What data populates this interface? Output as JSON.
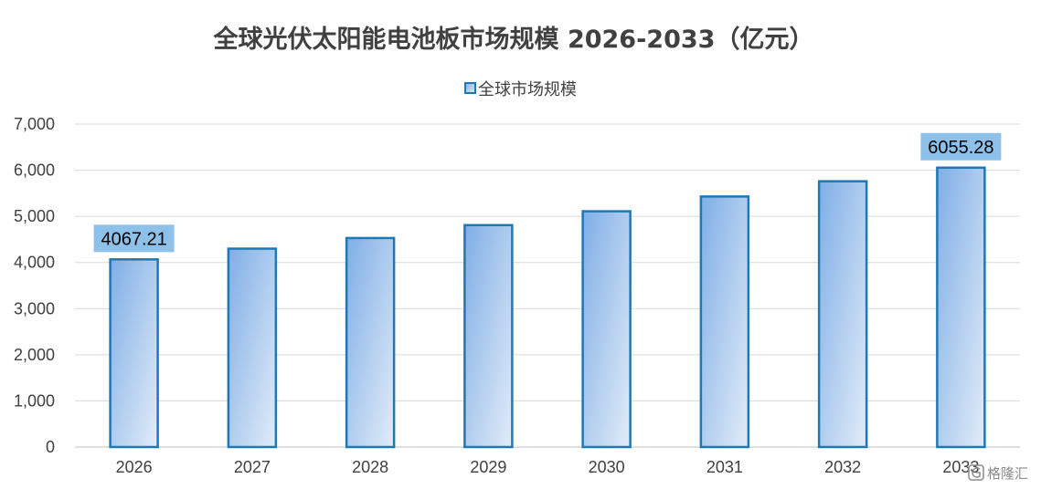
{
  "chart_data": {
    "type": "bar",
    "title": "全球光伏太阳能电池板市场规模 2026-2033（亿元）",
    "categories": [
      "2026",
      "2027",
      "2028",
      "2029",
      "2030",
      "2031",
      "2032",
      "2033"
    ],
    "series": [
      {
        "name": "全球市场规模",
        "values": [
          4067.21,
          4300,
          4530,
          4810,
          5110,
          5430,
          5760,
          6055.28
        ]
      }
    ],
    "data_labels": [
      {
        "category": "2026",
        "text": "4067.21"
      },
      {
        "category": "2033",
        "text": "6055.28"
      }
    ],
    "ylim": [
      0,
      7000
    ],
    "yticks": [
      0,
      1000,
      2000,
      3000,
      4000,
      5000,
      6000,
      7000
    ],
    "ytick_labels": [
      "0",
      "1,000",
      "2,000",
      "3,000",
      "4,000",
      "5,000",
      "6,000",
      "7,000"
    ],
    "grid": true,
    "legend_position": "top-center",
    "colors": {
      "bar_fill_dark": "#7faee6",
      "bar_fill_light": "#dde9f7",
      "bar_stroke": "#1f78b4",
      "label_box": "#8ec1ea",
      "grid": "#d9d9d9",
      "axis": "#bfbfbf"
    }
  },
  "watermark": {
    "icon": "g-logo-icon",
    "text": "格隆汇"
  }
}
